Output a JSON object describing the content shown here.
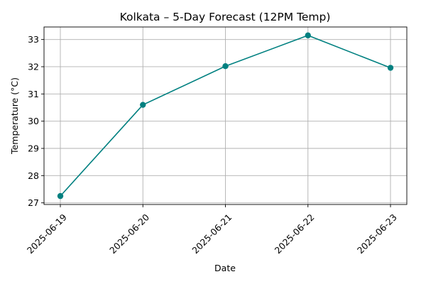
{
  "chart_data": {
    "type": "line",
    "title": "Kolkata – 5-Day Forecast (12PM Temp)",
    "xlabel": "Date",
    "ylabel": "Temperature (°C)",
    "categories": [
      "2025-06-19",
      "2025-06-20",
      "2025-06-21",
      "2025-06-22",
      "2025-06-23"
    ],
    "series": [
      {
        "values": [
          27.25,
          30.6,
          32.02,
          33.15,
          31.96
        ],
        "color": "#008080",
        "marker": "circle"
      }
    ],
    "ylim": [
      26.94,
      33.46
    ],
    "yticks": [
      27,
      28,
      29,
      30,
      31,
      32,
      33
    ],
    "grid": true,
    "legend": "none"
  }
}
